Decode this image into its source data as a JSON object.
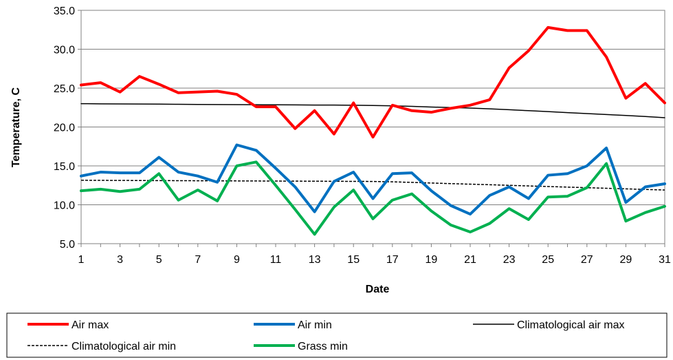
{
  "chart_data": {
    "type": "line",
    "xlabel": "Date",
    "ylabel": "Temperature, C",
    "ylim": [
      5.0,
      35.0
    ],
    "yticks": [
      "5.0",
      "10.0",
      "15.0",
      "20.0",
      "25.0",
      "30.0",
      "35.0"
    ],
    "xlim": [
      1,
      31
    ],
    "xticks": [
      1,
      3,
      5,
      7,
      9,
      11,
      13,
      15,
      17,
      19,
      21,
      23,
      25,
      27,
      29,
      31
    ],
    "grid": "horizontal",
    "legend_position": "bottom",
    "x": [
      1,
      2,
      3,
      4,
      5,
      6,
      7,
      8,
      9,
      10,
      11,
      12,
      13,
      14,
      15,
      16,
      17,
      18,
      19,
      20,
      21,
      22,
      23,
      24,
      25,
      26,
      27,
      28,
      29,
      30,
      31
    ],
    "series": [
      {
        "name": "Air max",
        "color": "#ff0000",
        "style": "thick",
        "values": [
          25.4,
          25.7,
          24.5,
          26.5,
          25.5,
          24.4,
          24.5,
          24.6,
          24.2,
          22.6,
          22.6,
          19.8,
          22.1,
          19.1,
          23.1,
          18.7,
          22.8,
          22.1,
          21.9,
          22.4,
          22.8,
          23.5,
          27.6,
          29.8,
          32.8,
          32.4,
          32.4,
          29.0,
          23.7,
          25.6,
          23.1
        ]
      },
      {
        "name": "Air min",
        "color": "#0070c0",
        "style": "thick",
        "values": [
          13.7,
          14.2,
          14.1,
          14.1,
          16.1,
          14.2,
          13.7,
          12.9,
          17.7,
          17.0,
          14.7,
          12.3,
          9.1,
          13.0,
          14.2,
          10.8,
          14.0,
          14.1,
          11.8,
          9.9,
          8.8,
          11.2,
          12.3,
          10.8,
          13.8,
          14.0,
          15.0,
          17.3,
          10.3,
          12.3,
          12.7
        ]
      },
      {
        "name": "Climatological air max",
        "color": "#000000",
        "style": "solid",
        "values": [
          23.0,
          22.98,
          22.96,
          22.95,
          22.94,
          22.92,
          22.9,
          22.89,
          22.88,
          22.86,
          22.85,
          22.84,
          22.82,
          22.82,
          22.8,
          22.77,
          22.72,
          22.65,
          22.57,
          22.5,
          22.43,
          22.33,
          22.22,
          22.1,
          21.98,
          21.85,
          21.73,
          21.6,
          21.48,
          21.35,
          21.2
        ]
      },
      {
        "name": "Climatological air min",
        "color": "#000000",
        "style": "dashed",
        "values": [
          13.15,
          13.14,
          13.13,
          13.12,
          13.11,
          13.1,
          13.09,
          13.08,
          13.07,
          13.06,
          13.05,
          13.04,
          13.03,
          13.02,
          13.01,
          13.0,
          12.95,
          12.88,
          12.8,
          12.72,
          12.65,
          12.58,
          12.5,
          12.42,
          12.35,
          12.27,
          12.2,
          12.12,
          12.05,
          11.97,
          11.9
        ]
      },
      {
        "name": "Grass min",
        "color": "#00b050",
        "style": "thick",
        "values": [
          11.8,
          12.0,
          11.7,
          12.0,
          14.0,
          10.6,
          11.9,
          10.5,
          15.0,
          15.5,
          12.5,
          9.4,
          6.2,
          9.7,
          11.9,
          8.2,
          10.6,
          11.4,
          9.2,
          7.4,
          6.5,
          7.6,
          9.5,
          8.1,
          11.0,
          11.1,
          12.2,
          15.3,
          7.9,
          9.0,
          9.8
        ]
      }
    ]
  },
  "legend": {
    "items": [
      {
        "label": "Air max",
        "series": 0
      },
      {
        "label": "Air min",
        "series": 1
      },
      {
        "label": "Climatological air max",
        "series": 2
      },
      {
        "label": "Climatological air min",
        "series": 3
      },
      {
        "label": "Grass min",
        "series": 4
      }
    ]
  }
}
